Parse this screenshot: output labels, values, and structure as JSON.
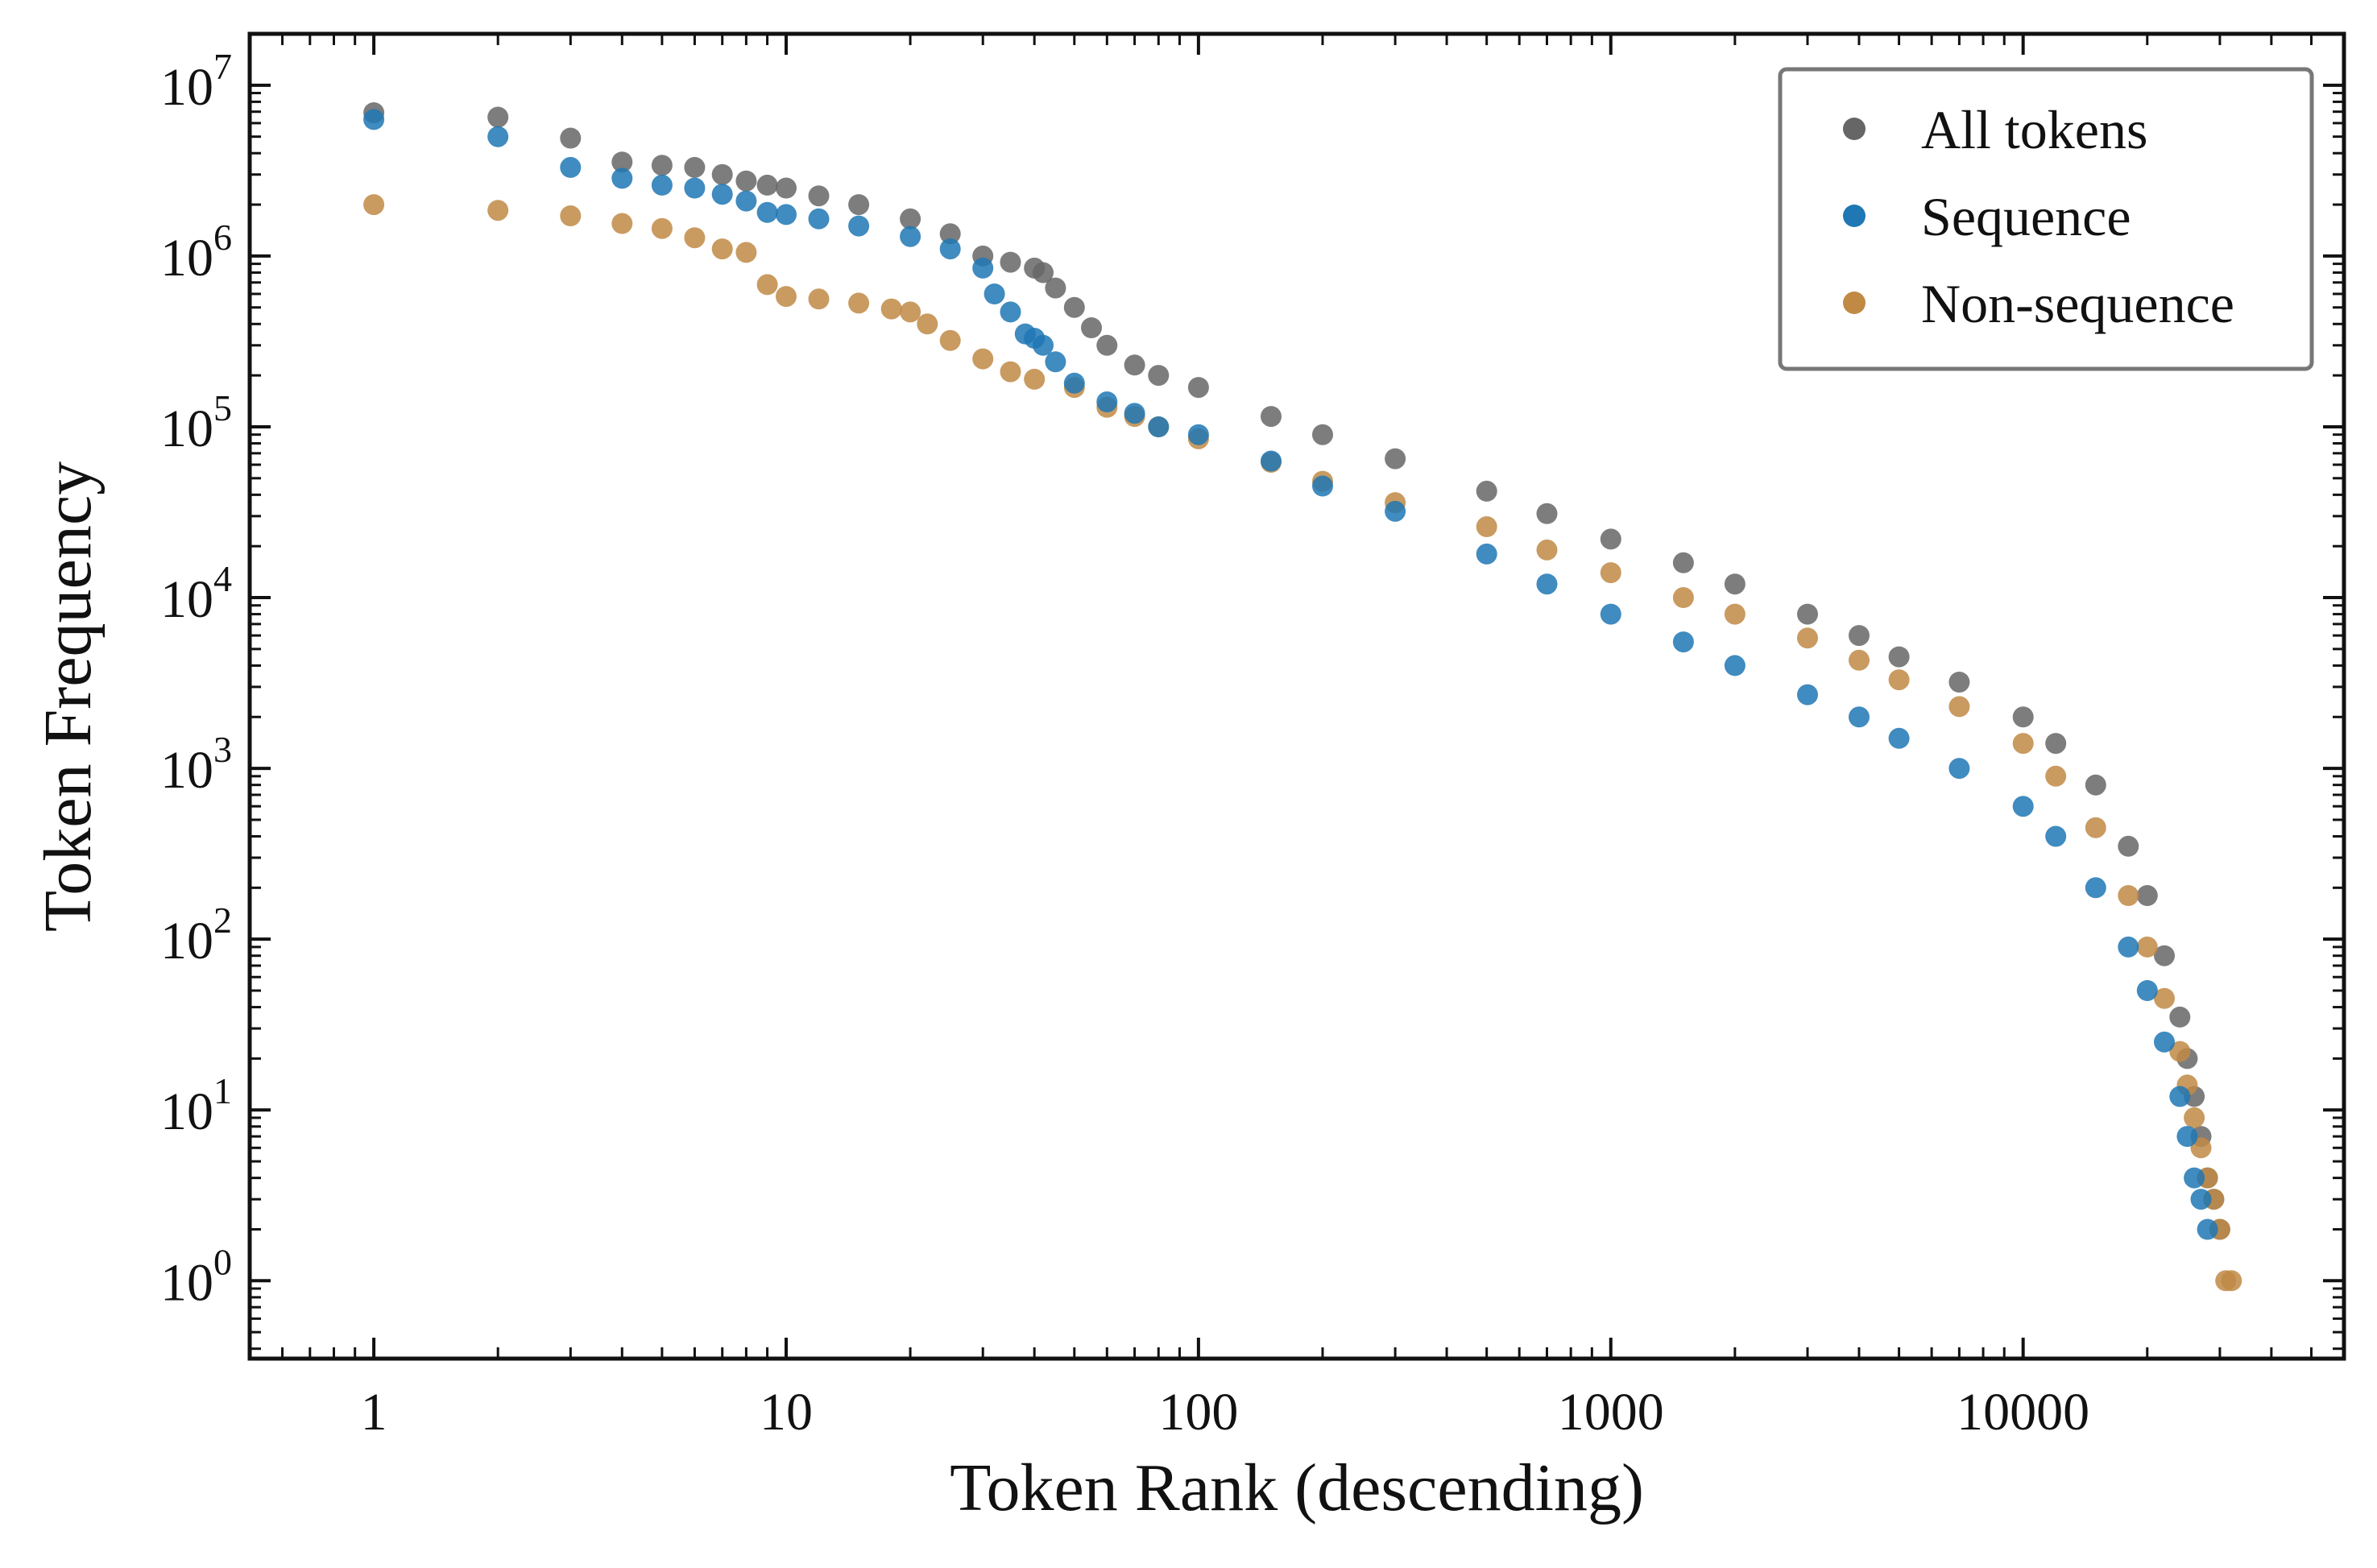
{
  "chart_data": {
    "type": "scatter",
    "title": "",
    "xlabel": "Token Rank (descending)",
    "ylabel": "Token Frequency",
    "xscale": "log",
    "yscale": "log",
    "xlim": [
      0.5,
      60000
    ],
    "ylim": [
      0.35,
      20000000
    ],
    "x_ticks": [
      {
        "value": 1,
        "label": "1"
      },
      {
        "value": 10,
        "label": "10"
      },
      {
        "value": 100,
        "label": "100"
      },
      {
        "value": 1000,
        "label": "1000"
      },
      {
        "value": 10000,
        "label": "10000"
      }
    ],
    "y_ticks": [
      {
        "value": 1,
        "base": "10",
        "exp": "0"
      },
      {
        "value": 10,
        "base": "10",
        "exp": "1"
      },
      {
        "value": 100,
        "base": "10",
        "exp": "2"
      },
      {
        "value": 1000,
        "base": "10",
        "exp": "3"
      },
      {
        "value": 10000,
        "base": "10",
        "exp": "4"
      },
      {
        "value": 100000,
        "base": "10",
        "exp": "5"
      },
      {
        "value": 1000000,
        "base": "10",
        "exp": "6"
      },
      {
        "value": 10000000,
        "base": "10",
        "exp": "7"
      }
    ],
    "grid": false,
    "legend_position": "top-right",
    "series": [
      {
        "name": "All tokens",
        "color": "#666666",
        "points": [
          [
            1,
            6900000
          ],
          [
            2,
            6500000
          ],
          [
            3,
            4900000
          ],
          [
            4,
            3550000
          ],
          [
            5,
            3400000
          ],
          [
            6,
            3300000
          ],
          [
            7,
            3000000
          ],
          [
            8,
            2750000
          ],
          [
            9,
            2600000
          ],
          [
            10,
            2500000
          ],
          [
            12,
            2250000
          ],
          [
            15,
            2000000
          ],
          [
            20,
            1650000
          ],
          [
            25,
            1350000
          ],
          [
            30,
            1000000
          ],
          [
            35,
            920000
          ],
          [
            40,
            850000
          ],
          [
            42,
            800000
          ],
          [
            45,
            650000
          ],
          [
            50,
            500000
          ],
          [
            55,
            380000
          ],
          [
            60,
            300000
          ],
          [
            70,
            230000
          ],
          [
            80,
            200000
          ],
          [
            100,
            170000
          ],
          [
            150,
            115000
          ],
          [
            200,
            90000
          ],
          [
            300,
            65000
          ],
          [
            500,
            42000
          ],
          [
            700,
            31000
          ],
          [
            1000,
            22000
          ],
          [
            1500,
            16000
          ],
          [
            2000,
            12000
          ],
          [
            3000,
            8000
          ],
          [
            4000,
            6000
          ],
          [
            5000,
            4500
          ],
          [
            7000,
            3200
          ],
          [
            10000,
            2000
          ],
          [
            12000,
            1400
          ],
          [
            15000,
            800
          ],
          [
            18000,
            350
          ],
          [
            20000,
            180
          ],
          [
            22000,
            80
          ],
          [
            24000,
            35
          ],
          [
            25000,
            20
          ],
          [
            26000,
            12
          ],
          [
            27000,
            7
          ],
          [
            28000,
            4
          ],
          [
            29000,
            3
          ],
          [
            30000,
            2
          ]
        ]
      },
      {
        "name": "Sequence",
        "color": "#1f77b4",
        "points": [
          [
            1,
            6300000
          ],
          [
            2,
            5000000
          ],
          [
            3,
            3300000
          ],
          [
            4,
            2850000
          ],
          [
            5,
            2600000
          ],
          [
            6,
            2500000
          ],
          [
            7,
            2300000
          ],
          [
            8,
            2100000
          ],
          [
            9,
            1800000
          ],
          [
            10,
            1750000
          ],
          [
            12,
            1650000
          ],
          [
            15,
            1500000
          ],
          [
            20,
            1300000
          ],
          [
            25,
            1100000
          ],
          [
            30,
            850000
          ],
          [
            32,
            600000
          ],
          [
            35,
            470000
          ],
          [
            38,
            350000
          ],
          [
            40,
            330000
          ],
          [
            42,
            300000
          ],
          [
            45,
            240000
          ],
          [
            50,
            180000
          ],
          [
            60,
            140000
          ],
          [
            70,
            120000
          ],
          [
            80,
            100000
          ],
          [
            100,
            90000
          ],
          [
            150,
            63000
          ],
          [
            200,
            45000
          ],
          [
            300,
            32000
          ],
          [
            500,
            18000
          ],
          [
            700,
            12000
          ],
          [
            1000,
            8000
          ],
          [
            1500,
            5500
          ],
          [
            2000,
            4000
          ],
          [
            3000,
            2700
          ],
          [
            4000,
            2000
          ],
          [
            5000,
            1500
          ],
          [
            7000,
            1000
          ],
          [
            10000,
            600
          ],
          [
            12000,
            400
          ],
          [
            15000,
            200
          ],
          [
            18000,
            90
          ],
          [
            20000,
            50
          ],
          [
            22000,
            25
          ],
          [
            24000,
            12
          ],
          [
            25000,
            7
          ],
          [
            26000,
            4
          ],
          [
            27000,
            3
          ],
          [
            28000,
            2
          ]
        ]
      },
      {
        "name": "Non-sequence",
        "color": "#c08a45",
        "points": [
          [
            1,
            2000000
          ],
          [
            2,
            1850000
          ],
          [
            3,
            1720000
          ],
          [
            4,
            1550000
          ],
          [
            5,
            1450000
          ],
          [
            6,
            1280000
          ],
          [
            7,
            1100000
          ],
          [
            8,
            1050000
          ],
          [
            9,
            680000
          ],
          [
            10,
            580000
          ],
          [
            12,
            560000
          ],
          [
            15,
            530000
          ],
          [
            18,
            490000
          ],
          [
            20,
            470000
          ],
          [
            22,
            400000
          ],
          [
            25,
            320000
          ],
          [
            30,
            250000
          ],
          [
            35,
            210000
          ],
          [
            40,
            190000
          ],
          [
            50,
            170000
          ],
          [
            60,
            130000
          ],
          [
            70,
            115000
          ],
          [
            80,
            100000
          ],
          [
            100,
            85000
          ],
          [
            150,
            62000
          ],
          [
            200,
            48000
          ],
          [
            300,
            36000
          ],
          [
            500,
            26000
          ],
          [
            700,
            19000
          ],
          [
            1000,
            14000
          ],
          [
            1500,
            10000
          ],
          [
            2000,
            8000
          ],
          [
            3000,
            5800
          ],
          [
            4000,
            4300
          ],
          [
            5000,
            3300
          ],
          [
            7000,
            2300
          ],
          [
            10000,
            1400
          ],
          [
            12000,
            900
          ],
          [
            15000,
            450
          ],
          [
            18000,
            180
          ],
          [
            20000,
            90
          ],
          [
            22000,
            45
          ],
          [
            24000,
            22
          ],
          [
            25000,
            14
          ],
          [
            26000,
            9
          ],
          [
            27000,
            6
          ],
          [
            28000,
            4
          ],
          [
            29000,
            3
          ],
          [
            30000,
            2
          ],
          [
            31000,
            1
          ],
          [
            32000,
            1
          ]
        ]
      }
    ]
  }
}
